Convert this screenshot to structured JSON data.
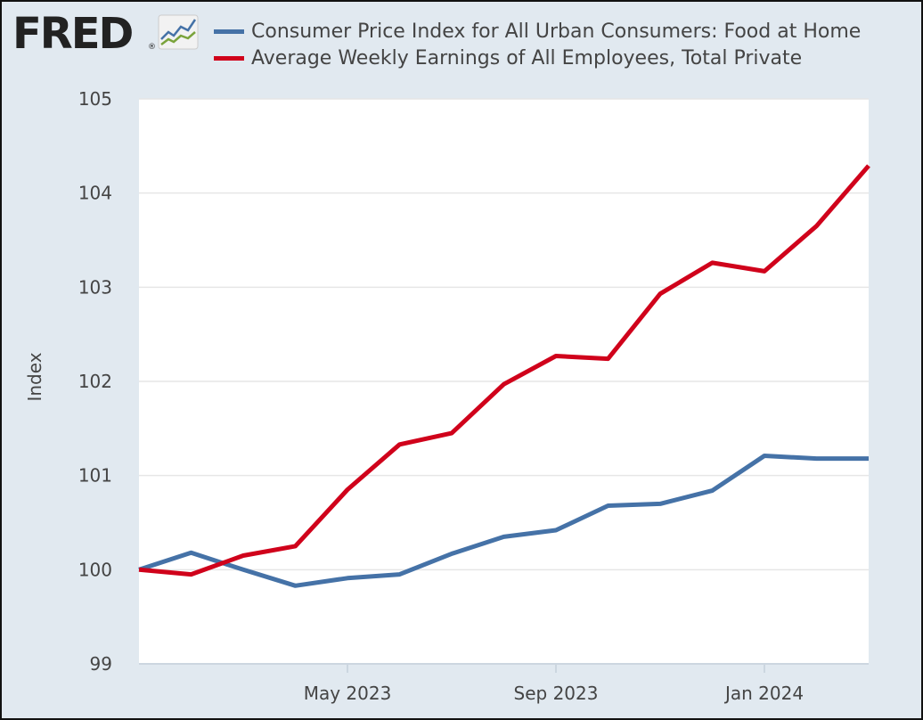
{
  "logo": {
    "text": "FRED",
    "registered": "®",
    "icon": "trend-chart-icon"
  },
  "colors": {
    "background": "#e1e9f0",
    "plot": "#ffffff",
    "grid": "#e6e6e6"
  },
  "chart_data": {
    "type": "line",
    "ylabel": "Index",
    "ylim": [
      99,
      105
    ],
    "yticks": [
      99,
      100,
      101,
      102,
      103,
      104,
      105
    ],
    "xlim": [
      "2023-01",
      "2024-03"
    ],
    "xticks": [
      {
        "date": "2023-05",
        "label": "May 2023"
      },
      {
        "date": "2023-09",
        "label": "Sep 2023"
      },
      {
        "date": "2024-01",
        "label": "Jan 2024"
      }
    ],
    "grid": true,
    "legend_position": "top",
    "x": [
      "2023-01",
      "2023-02",
      "2023-03",
      "2023-04",
      "2023-05",
      "2023-06",
      "2023-07",
      "2023-08",
      "2023-09",
      "2023-10",
      "2023-11",
      "2023-12",
      "2024-01",
      "2024-02",
      "2024-03"
    ],
    "series": [
      {
        "name": "Consumer Price Index for All Urban Consumers: Food at Home",
        "color": "#4572a7",
        "values": [
          100.0,
          100.18,
          100.0,
          99.83,
          99.91,
          99.95,
          100.17,
          100.35,
          100.42,
          100.68,
          100.7,
          100.84,
          101.21,
          101.18,
          101.18
        ]
      },
      {
        "name": "Average Weekly Earnings of All Employees, Total Private",
        "color": "#d0021b",
        "values": [
          100.0,
          99.95,
          100.15,
          100.25,
          100.85,
          101.33,
          101.45,
          101.97,
          102.27,
          102.24,
          102.93,
          103.26,
          103.17,
          103.65,
          104.29
        ]
      }
    ]
  }
}
